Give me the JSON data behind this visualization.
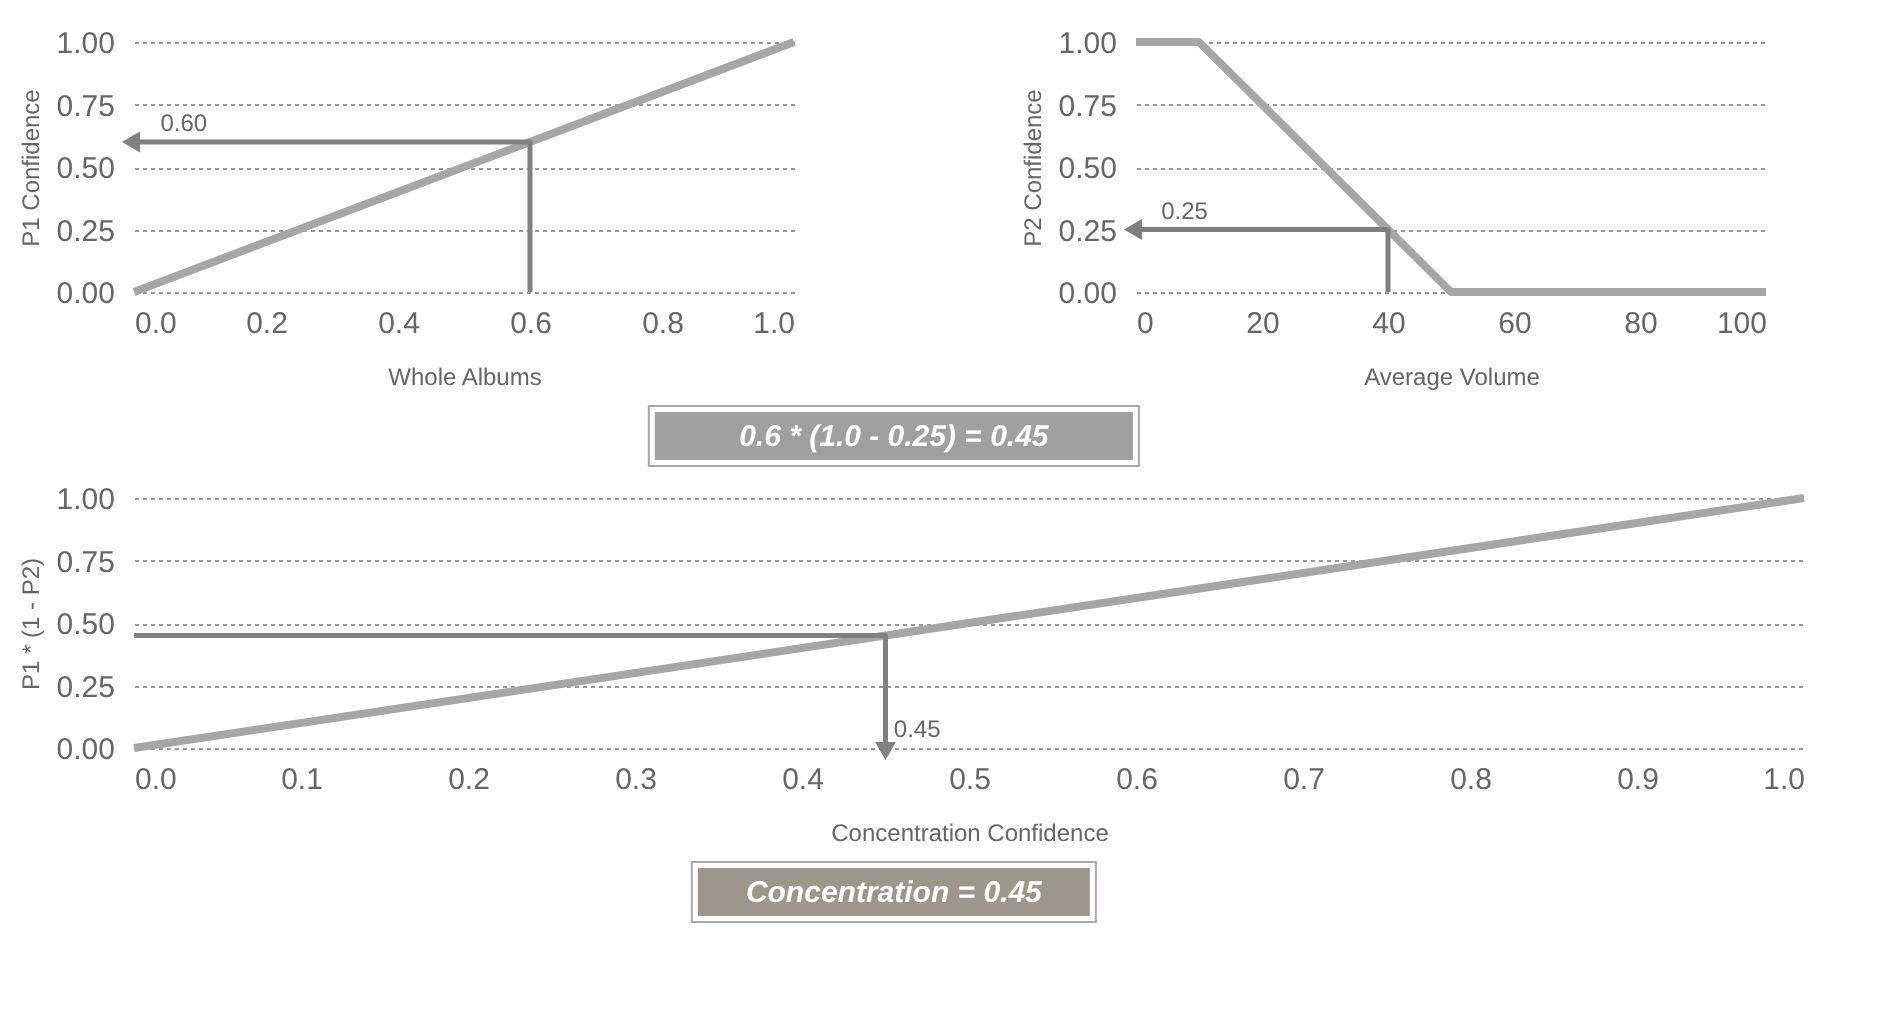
{
  "chart_data": [
    {
      "type": "line",
      "xlabel": "Whole Albums",
      "ylabel": "P1 Confidence",
      "xlim": [
        0,
        1
      ],
      "ylim": [
        0,
        1
      ],
      "xticks": [
        {
          "value": 0,
          "label": "0.0"
        },
        {
          "value": 0.2,
          "label": "0.2"
        },
        {
          "value": 0.4,
          "label": "0.4"
        },
        {
          "value": 0.6,
          "label": "0.6"
        },
        {
          "value": 0.8,
          "label": "0.8"
        },
        {
          "value": 1,
          "label": "1.0"
        }
      ],
      "yticks": [
        {
          "value": 0,
          "label": "0.00"
        },
        {
          "value": 0.25,
          "label": "0.25"
        },
        {
          "value": 0.5,
          "label": "0.50"
        },
        {
          "value": 0.75,
          "label": "0.75"
        },
        {
          "value": 1,
          "label": "1.00"
        }
      ],
      "grid": "y",
      "series": [
        {
          "color": "#a6a6a6",
          "x": [
            0,
            1
          ],
          "values": [
            0,
            1
          ]
        },
        {
          "color": "#808080",
          "x": [
            0.6,
            0.6,
            0
          ],
          "values": [
            0,
            0.6,
            0.6
          ]
        }
      ],
      "annotations": [
        {
          "text": "0.60",
          "x": 0.04,
          "y": 0.62
        }
      ]
    },
    {
      "type": "line",
      "xlabel": "Average Volume",
      "ylabel": "P2 Confidence",
      "xlim": [
        0,
        100
      ],
      "ylim": [
        0,
        1
      ],
      "xticks": [
        0,
        20,
        40,
        60,
        80,
        100
      ],
      "yticks": [
        {
          "value": 0,
          "label": "0.00"
        },
        {
          "value": 0.25,
          "label": "0.25"
        },
        {
          "value": 0.5,
          "label": "0.50"
        },
        {
          "value": 0.75,
          "label": "0.75"
        },
        {
          "value": 1,
          "label": "1.00"
        }
      ],
      "grid": "y",
      "series": [
        {
          "color": "#a6a6a6",
          "x": [
            0,
            10,
            50,
            100
          ],
          "values": [
            1,
            1,
            0,
            0
          ]
        },
        {
          "color": "#808080",
          "x": [
            40,
            40,
            0
          ],
          "values": [
            0,
            0.25,
            0.25
          ]
        }
      ],
      "annotations": [
        {
          "text": "0.25",
          "x": 4,
          "y": 0.27
        }
      ]
    },
    {
      "type": "line",
      "xlabel": "Concentration Confidence",
      "ylabel": "P1 * (1 - P2)",
      "xlim": [
        0,
        1
      ],
      "ylim": [
        0,
        1
      ],
      "xticks": [
        {
          "value": 0,
          "label": "0.0"
        },
        0.1,
        0.2,
        0.3,
        0.4,
        0.5,
        0.6,
        0.7,
        0.8,
        0.9,
        {
          "value": 1,
          "label": "1.0"
        }
      ],
      "yticks": [
        {
          "value": 0,
          "label": "0.00"
        },
        {
          "value": 0.25,
          "label": "0.25"
        },
        {
          "value": 0.5,
          "label": "0.50"
        },
        {
          "value": 0.75,
          "label": "0.75"
        },
        {
          "value": 1,
          "label": "1.00"
        }
      ],
      "grid": "y",
      "series": [
        {
          "color": "#a6a6a6",
          "x": [
            0,
            1
          ],
          "values": [
            0,
            1
          ]
        },
        {
          "color": "#808080",
          "x": [
            0,
            0.45,
            0.45
          ],
          "values": [
            0.45,
            0.45,
            0
          ]
        }
      ],
      "annotations": [
        "0.6 * (1.0 - 0.25) = 0.45",
        {
          "text": "0.45",
          "x": 0.455,
          "y": 0.02
        },
        "Concentration = 0.45"
      ]
    }
  ]
}
